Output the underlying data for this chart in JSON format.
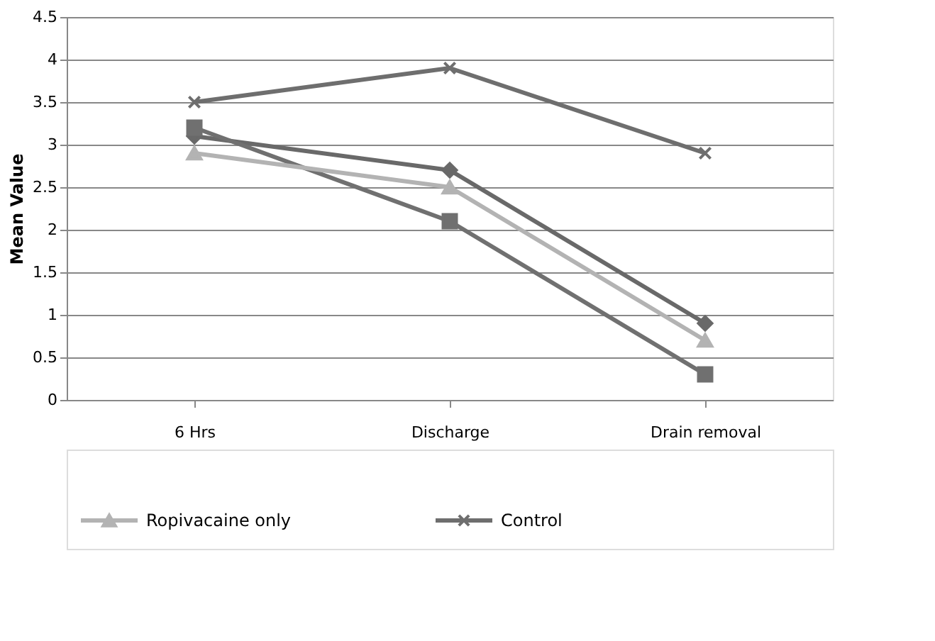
{
  "chart_data": {
    "type": "line",
    "ylabel": "Mean Value",
    "categories": [
      "6 Hrs",
      "Discharge",
      "Drain removal"
    ],
    "series": [
      {
        "color": "#696969",
        "marker": "diamond",
        "values": [
          3.1,
          2.7,
          0.9
        ]
      },
      {
        "color": "#707070",
        "marker": "square",
        "values": [
          3.2,
          2.1,
          0.3
        ]
      },
      {
        "name": "Ropivacaine only",
        "color": "#b3b3b3",
        "marker": "triangle",
        "values": [
          2.9,
          2.5,
          0.7
        ]
      },
      {
        "name": "Control",
        "color": "#6e6e6e",
        "marker": "cross",
        "values": [
          3.5,
          3.9,
          2.9
        ]
      }
    ],
    "ylim": [
      0,
      4.5
    ],
    "yticks": [
      0,
      0.5,
      1,
      1.5,
      2,
      2.5,
      3,
      3.5,
      4,
      4.5
    ],
    "grid": "y",
    "legend": "bottom",
    "line_style": "solid"
  }
}
